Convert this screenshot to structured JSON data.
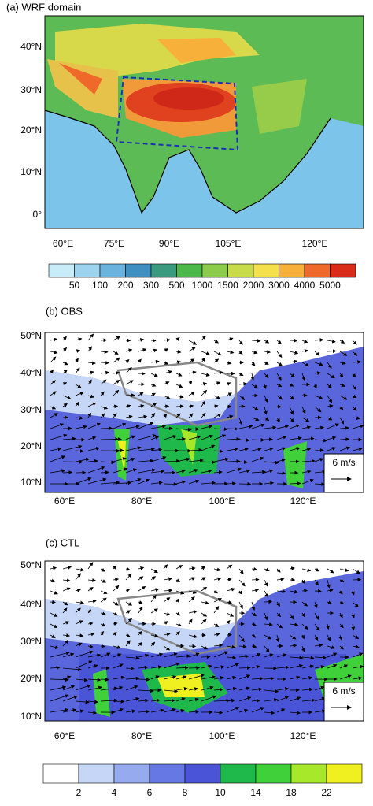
{
  "panels": [
    {
      "title": "(a) WRF domain",
      "y_labels": [
        "40°N",
        "30°N",
        "20°N",
        "10°N",
        "0°"
      ],
      "x_labels": [
        "60°E",
        "75°E",
        "90°E",
        "105°E",
        "120°E"
      ],
      "colorbar": {
        "labels": [
          "50",
          "100",
          "200",
          "300",
          "500",
          "1000",
          "1500",
          "2000",
          "3000",
          "4000",
          "5000"
        ],
        "colors": [
          "#c8ecf8",
          "#9dd3ee",
          "#6ab3dd",
          "#3f8fc0",
          "#3a9a80",
          "#4cb84c",
          "#8ccc4a",
          "#c8dc4a",
          "#f4e04a",
          "#f7b03a",
          "#ef6a2a",
          "#d92a1a"
        ]
      }
    },
    {
      "title": "(b) OBS",
      "y_labels": [
        "50°N",
        "40°N",
        "30°N",
        "20°N",
        "10°N"
      ],
      "x_labels": [
        "60°E",
        "80°E",
        "100°E",
        "120°E"
      ],
      "reference_vector": "6 m/s"
    },
    {
      "title": "(c) CTL",
      "y_labels": [
        "50°N",
        "40°N",
        "30°N",
        "20°N",
        "10°N"
      ],
      "x_labels": [
        "60°E",
        "80°E",
        "100°E",
        "120°E"
      ],
      "reference_vector": "6 m/s",
      "colorbar": {
        "labels": [
          "2",
          "4",
          "6",
          "8",
          "10",
          "14",
          "18",
          "22"
        ],
        "colors": [
          "#ffffff",
          "#c6d6f6",
          "#96aaf0",
          "#6678e4",
          "#4a54d6",
          "#1fb84a",
          "#3fd03a",
          "#a8e82a",
          "#f0f020"
        ]
      }
    }
  ]
}
